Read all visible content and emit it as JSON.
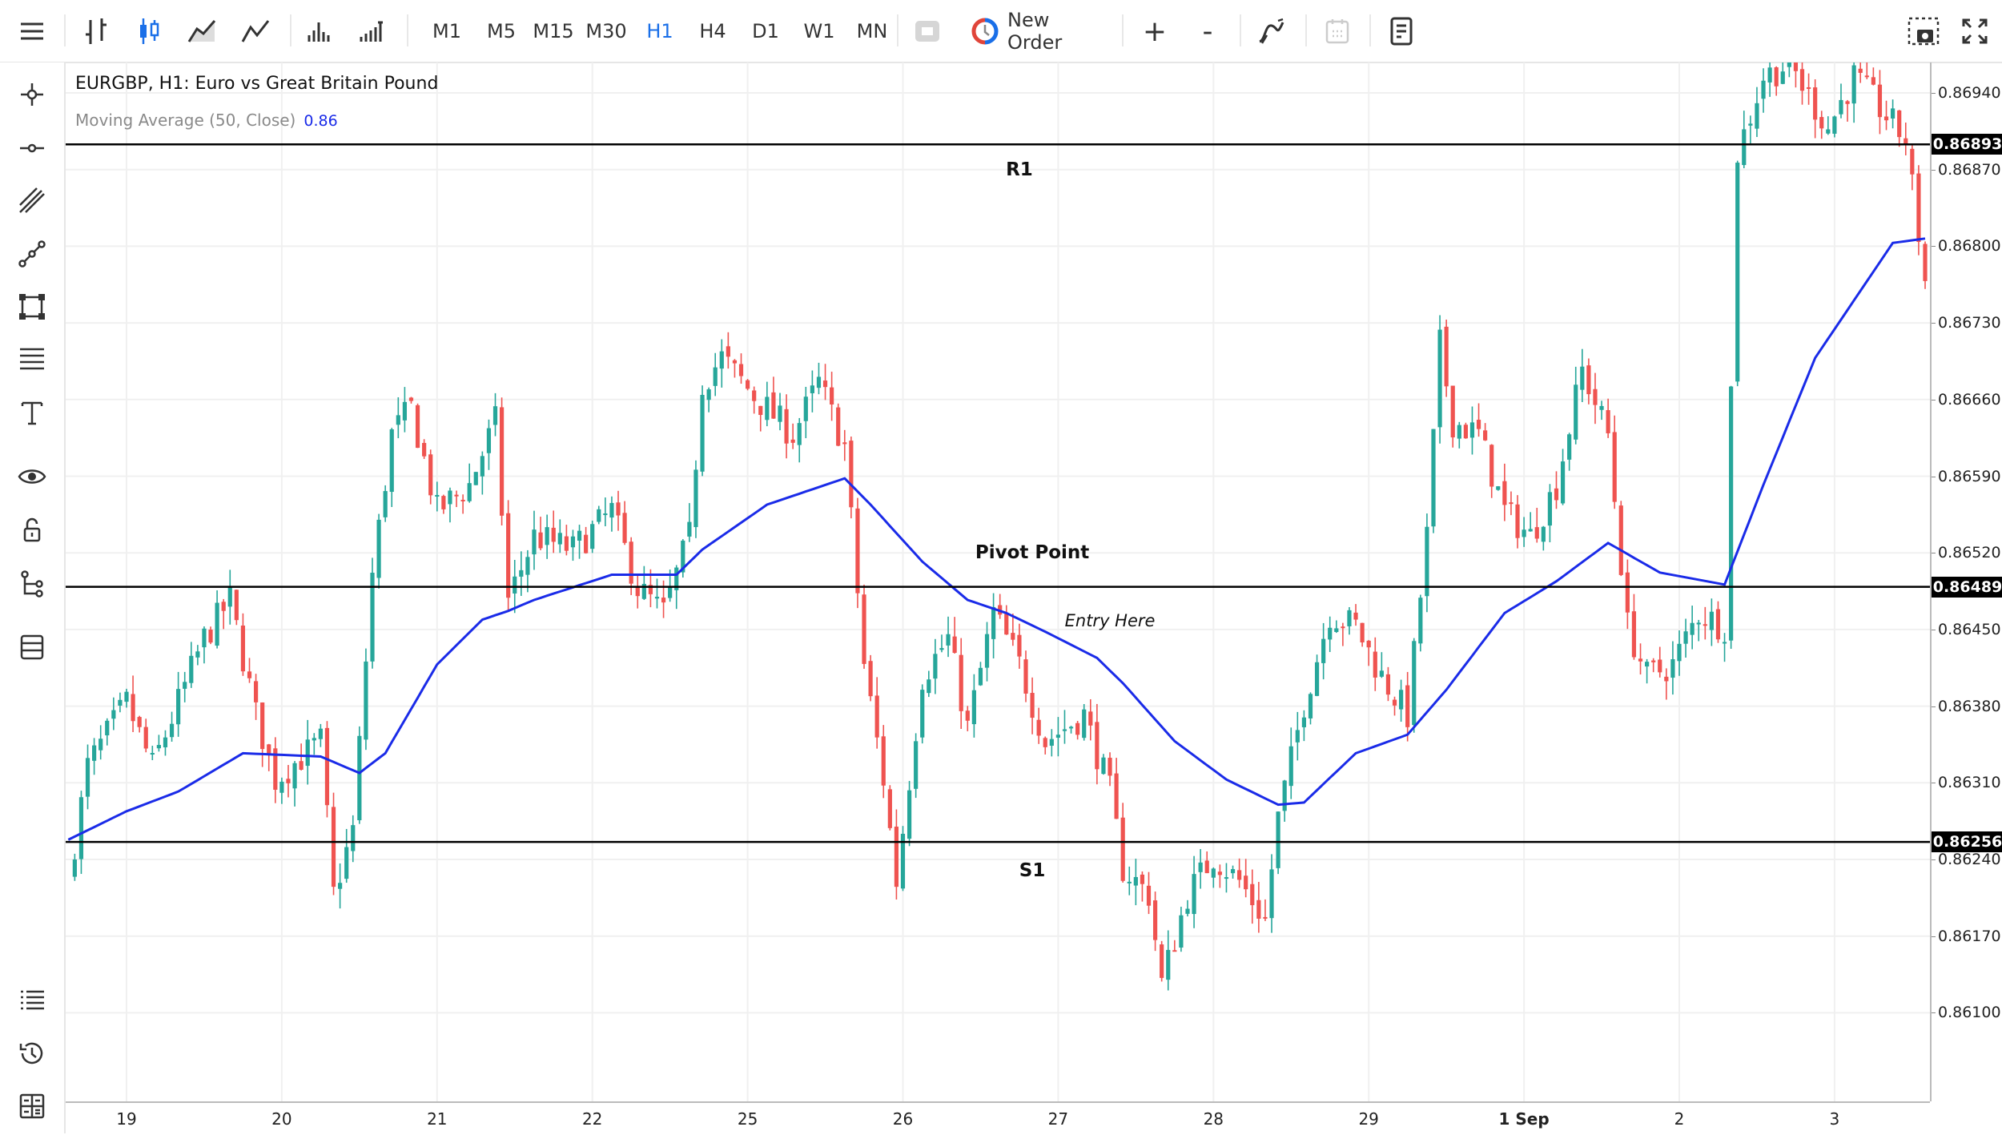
{
  "toolbar": {
    "menu_icon": "hamburger-icon",
    "chart_types": [
      "bar-chart-icon",
      "candlestick-icon",
      "area-chart-icon",
      "line-chart-icon",
      "volume-icon",
      "tick-volume-icon"
    ],
    "timeframes": [
      "M1",
      "M5",
      "M15",
      "M30",
      "H1",
      "H4",
      "D1",
      "W1",
      "MN"
    ],
    "active_timeframe": "H1",
    "new_order_label": "New Order",
    "zoom_in": "+",
    "zoom_out": "-",
    "indicators_icon": "indicators-icon",
    "calendar_icon": "calendar-icon",
    "templates_icon": "templates-icon",
    "screenshot_icon": "camera-icon",
    "fullscreen_icon": "fullscreen-icon"
  },
  "sidebar": {
    "tools": [
      "crosshair-icon",
      "horizontal-line-icon",
      "parallel-channel-icon",
      "trend-line-icon",
      "shapes-icon",
      "fibonacci-icon",
      "text-icon",
      "eye-icon",
      "lock-icon",
      "object-tree-icon",
      "layers-icon"
    ],
    "bottom": [
      "list-icon",
      "history-icon",
      "calculator-icon"
    ]
  },
  "legend": {
    "title": "EURGBP, H1: Euro vs Great Britain Pound",
    "ma_label": "Moving Average (50, Close)",
    "ma_value": "0.86"
  },
  "colors": {
    "bull": "#26a69a",
    "bear": "#ef5350",
    "ma": "#1a2be8",
    "level": "#000000",
    "active": "#1a6fe8"
  },
  "chart_data": {
    "type": "candlestick",
    "symbol": "EURGBP",
    "timeframe": "H1",
    "days": [
      "18",
      "19",
      "20",
      "21",
      "22",
      "25",
      "26",
      "27",
      "28",
      "29",
      "1",
      "2",
      "3"
    ],
    "x_ticks": [
      {
        "day": "19",
        "label": "19"
      },
      {
        "day": "20",
        "label": "20"
      },
      {
        "day": "21",
        "label": "21"
      },
      {
        "day": "22",
        "label": "22"
      },
      {
        "day": "25",
        "label": "25"
      },
      {
        "day": "26",
        "label": "26"
      },
      {
        "day": "27",
        "label": "27"
      },
      {
        "day": "28",
        "label": "28"
      },
      {
        "day": "29",
        "label": "29"
      },
      {
        "day": "1",
        "label": "1 Sep",
        "bold": true
      },
      {
        "day": "2",
        "label": "2"
      },
      {
        "day": "3",
        "label": "3"
      }
    ],
    "y_ticks": [
      "0.86940",
      "0.86870",
      "0.86800",
      "0.86730",
      "0.86660",
      "0.86590",
      "0.86520",
      "0.86450",
      "0.86380",
      "0.86310",
      "0.86240",
      "0.86170",
      "0.86100"
    ],
    "ylim": [
      0.8601,
      0.8699
    ],
    "grid": true,
    "price_path": [
      [
        "18 15:00",
        0.8622
      ],
      [
        "18 18:00",
        0.86325
      ],
      [
        "19 00:00",
        0.86383
      ],
      [
        "19 04:00",
        0.86325
      ],
      [
        "19 12:00",
        0.86442
      ],
      [
        "19 16:00",
        0.86477
      ],
      [
        "19 20:00",
        0.86372
      ],
      [
        "19 23:00",
        0.86313
      ],
      [
        "20 06:00",
        0.86348
      ],
      [
        "20 08:00",
        0.86208
      ],
      [
        "20 11:00",
        0.86267
      ],
      [
        "20 14:00",
        0.865
      ],
      [
        "20 17:00",
        0.86628
      ],
      [
        "20 20:00",
        0.86652
      ],
      [
        "21 00:00",
        0.86558
      ],
      [
        "21 05:00",
        0.86582
      ],
      [
        "21 09:00",
        0.8664
      ],
      [
        "21 11:00",
        0.86477
      ],
      [
        "21 15:00",
        0.86535
      ],
      [
        "21 21:00",
        0.86523
      ],
      [
        "22 03:00",
        0.86558
      ],
      [
        "22 07:00",
        0.86488
      ],
      [
        "22 11:00",
        0.86465
      ],
      [
        "22 15:00",
        0.86535
      ],
      [
        "22 17:00",
        0.86675
      ],
      [
        "22 20:00",
        0.86698
      ],
      [
        "25 01:00",
        0.86663
      ],
      [
        "25 07:00",
        0.86628
      ],
      [
        "25 11:00",
        0.86675
      ],
      [
        "25 15:00",
        0.86617
      ],
      [
        "25 18:00",
        0.86418
      ],
      [
        "25 21:00",
        0.86313
      ],
      [
        "25 23:00",
        0.8622
      ],
      [
        "26 03:00",
        0.86407
      ],
      [
        "26 07:00",
        0.86442
      ],
      [
        "26 10:00",
        0.8636
      ],
      [
        "26 14:00",
        0.86465
      ],
      [
        "26 18:00",
        0.86418
      ],
      [
        "26 22:00",
        0.86348
      ],
      [
        "27 04:00",
        0.86372
      ],
      [
        "27 08:00",
        0.86302
      ],
      [
        "27 10:00",
        0.86232
      ],
      [
        "27 14:00",
        0.86208
      ],
      [
        "27 16:00",
        0.86127
      ],
      [
        "27 20:00",
        0.86208
      ],
      [
        "28 00:00",
        0.86243
      ],
      [
        "28 04:00",
        0.8622
      ],
      [
        "28 08:00",
        0.86185
      ],
      [
        "28 10:00",
        0.86278
      ],
      [
        "28 14:00",
        0.86383
      ],
      [
        "28 18:00",
        0.86465
      ],
      [
        "28 22:00",
        0.86453
      ],
      [
        "29 02:00",
        0.86407
      ],
      [
        "29 06:00",
        0.86372
      ],
      [
        "29 09:00",
        0.86535
      ],
      [
        "29 11:00",
        0.8671
      ],
      [
        "29 13:00",
        0.8664
      ],
      [
        "29 17:00",
        0.86628
      ],
      [
        "29 21:00",
        0.86558
      ],
      [
        "1 01:00",
        0.86535
      ],
      [
        "1 05:00",
        0.86582
      ],
      [
        "1 09:00",
        0.86687
      ],
      [
        "1 13:00",
        0.86628
      ],
      [
        "1 16:00",
        0.86453
      ],
      [
        "1 19:00",
        0.86407
      ],
      [
        "1 23:00",
        0.86418
      ],
      [
        "2 03:00",
        0.86465
      ],
      [
        "2 07:00",
        0.86453
      ],
      [
        "2 09:00",
        0.86885
      ],
      [
        "2 13:00",
        0.86955
      ],
      [
        "2 17:00",
        0.86967
      ],
      [
        "2 23:00",
        0.86908
      ],
      [
        "3 03:00",
        0.86955
      ],
      [
        "3 11:00",
        0.86897
      ],
      [
        "3 14:00",
        0.86768
      ]
    ],
    "moving_average": [
      [
        "18 15:00",
        0.86258
      ],
      [
        "19 00:00",
        0.86284
      ],
      [
        "19 08:00",
        0.86302
      ],
      [
        "19 18:00",
        0.86337
      ],
      [
        "20 06:00",
        0.86334
      ],
      [
        "20 12:00",
        0.86319
      ],
      [
        "20 16:00",
        0.86337
      ],
      [
        "21 00:00",
        0.86418
      ],
      [
        "21 07:00",
        0.86459
      ],
      [
        "21 11:00",
        0.86467
      ],
      [
        "21 15:00",
        0.86477
      ],
      [
        "22 03:00",
        0.865
      ],
      [
        "22 13:00",
        0.865
      ],
      [
        "22 17:00",
        0.86523
      ],
      [
        "25 03:00",
        0.86564
      ],
      [
        "25 15:00",
        0.86588
      ],
      [
        "25 19:00",
        0.86564
      ],
      [
        "26 03:00",
        0.86512
      ],
      [
        "26 10:00",
        0.86477
      ],
      [
        "26 16:00",
        0.86465
      ],
      [
        "26 22:00",
        0.86448
      ],
      [
        "27 06:00",
        0.86424
      ],
      [
        "27 10:00",
        0.86401
      ],
      [
        "27 18:00",
        0.86348
      ],
      [
        "28 02:00",
        0.86313
      ],
      [
        "28 10:00",
        0.8629
      ],
      [
        "28 14:00",
        0.86292
      ],
      [
        "28 22:00",
        0.86337
      ],
      [
        "29 06:00",
        0.86354
      ],
      [
        "29 12:00",
        0.86395
      ],
      [
        "29 21:00",
        0.86465
      ],
      [
        "1 05:00",
        0.86494
      ],
      [
        "1 13:00",
        0.86529
      ],
      [
        "1 21:00",
        0.86502
      ],
      [
        "2 07:00",
        0.86491
      ],
      [
        "2 13:00",
        0.86582
      ],
      [
        "2 21:00",
        0.86698
      ],
      [
        "3 09:00",
        0.86803
      ],
      [
        "3 14:00",
        0.86807
      ]
    ],
    "levels": [
      {
        "name": "R1",
        "price": 0.86893,
        "label": "0.86893"
      },
      {
        "name": "Pivot Point",
        "price": 0.86489,
        "label": "0.86489"
      },
      {
        "name": "S1",
        "price": 0.86256,
        "label": "0.86256"
      }
    ],
    "annotations": [
      {
        "text": "R1",
        "day": "26",
        "time": "18:00",
        "price": 0.8687,
        "style": "bold"
      },
      {
        "text": "Pivot Point",
        "day": "26",
        "time": "20:00",
        "price": 0.8652,
        "style": "bold"
      },
      {
        "text": "Entry Here",
        "day": "27",
        "time": "08:00",
        "price": 0.86458,
        "style": "italic"
      },
      {
        "text": "S1",
        "day": "26",
        "time": "20:00",
        "price": 0.8623,
        "style": "bold"
      }
    ]
  }
}
